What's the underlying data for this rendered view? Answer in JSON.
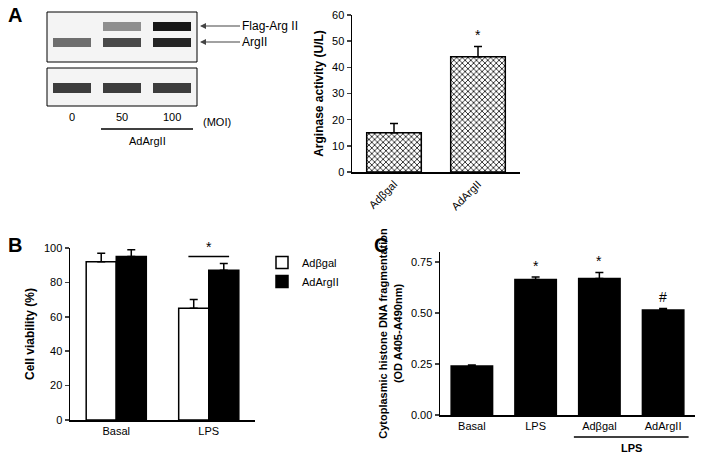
{
  "chart_data": [
    {
      "type": "blot",
      "title": "A",
      "bands": [
        "Flag-Arg II",
        "ArgII"
      ],
      "lanes": [
        0,
        50,
        100
      ],
      "unit": "(MOI)",
      "treatment": "AdArgII"
    },
    {
      "type": "bar",
      "categories": [
        "Adβgal",
        "AdArgII"
      ],
      "values": [
        15,
        44
      ],
      "errors": [
        3.5,
        4
      ],
      "y_label": "Arginase activity (U/L)",
      "ylim": [
        0,
        60
      ],
      "yticks": [
        0,
        10,
        20,
        30,
        40,
        50,
        60
      ],
      "color": "#000000",
      "marker": "hatched",
      "grid": false,
      "annotations": [
        {
          "text": "*",
          "category": "AdArgII"
        }
      ]
    },
    {
      "type": "bar",
      "title": "B",
      "y_label": "Cell viability (%)",
      "categories": [
        "Basal",
        "LPS"
      ],
      "series": [
        {
          "name": "Adβgal",
          "color": "#ffffff",
          "values": [
            92,
            65
          ],
          "errors": [
            5,
            5
          ]
        },
        {
          "name": "AdArgII",
          "color": "#000000",
          "values": [
            95,
            87
          ],
          "errors": [
            4,
            4
          ]
        }
      ],
      "ylim": [
        0,
        100
      ],
      "yticks": [
        0,
        20,
        40,
        60,
        80,
        100
      ],
      "legend": "right",
      "grid": false,
      "annotations": [
        {
          "text": "*",
          "category": "LPS"
        }
      ]
    },
    {
      "type": "bar",
      "title": "C",
      "y_label": [
        "Cytoplasmic histone DNA fragmentation",
        "(OD A405-A490nm)"
      ],
      "categories": [
        "Basal",
        "LPS",
        "Adβgal",
        "AdArgII"
      ],
      "values": [
        0.24,
        0.665,
        0.67,
        0.515
      ],
      "errors": [
        0.005,
        0.012,
        0.03,
        0.008
      ],
      "color": "#000000",
      "grid": false,
      "ylim": [
        0,
        0.8
      ],
      "yticks": [
        {
          "value": 0,
          "label": "0.00"
        },
        {
          "value": 0.25,
          "label": "0.25"
        },
        {
          "value": 0.5,
          "label": "0.50"
        },
        {
          "value": 0.75,
          "label": "0.75"
        }
      ],
      "annotations": [
        {
          "text": "*",
          "category": "LPS"
        },
        {
          "text": "*",
          "category": "Adβgal"
        },
        {
          "text": "#",
          "category": "AdArgII"
        },
        {
          "text": "LPS",
          "categories": [
            "Adβgal",
            "AdArgII"
          ]
        }
      ]
    }
  ]
}
